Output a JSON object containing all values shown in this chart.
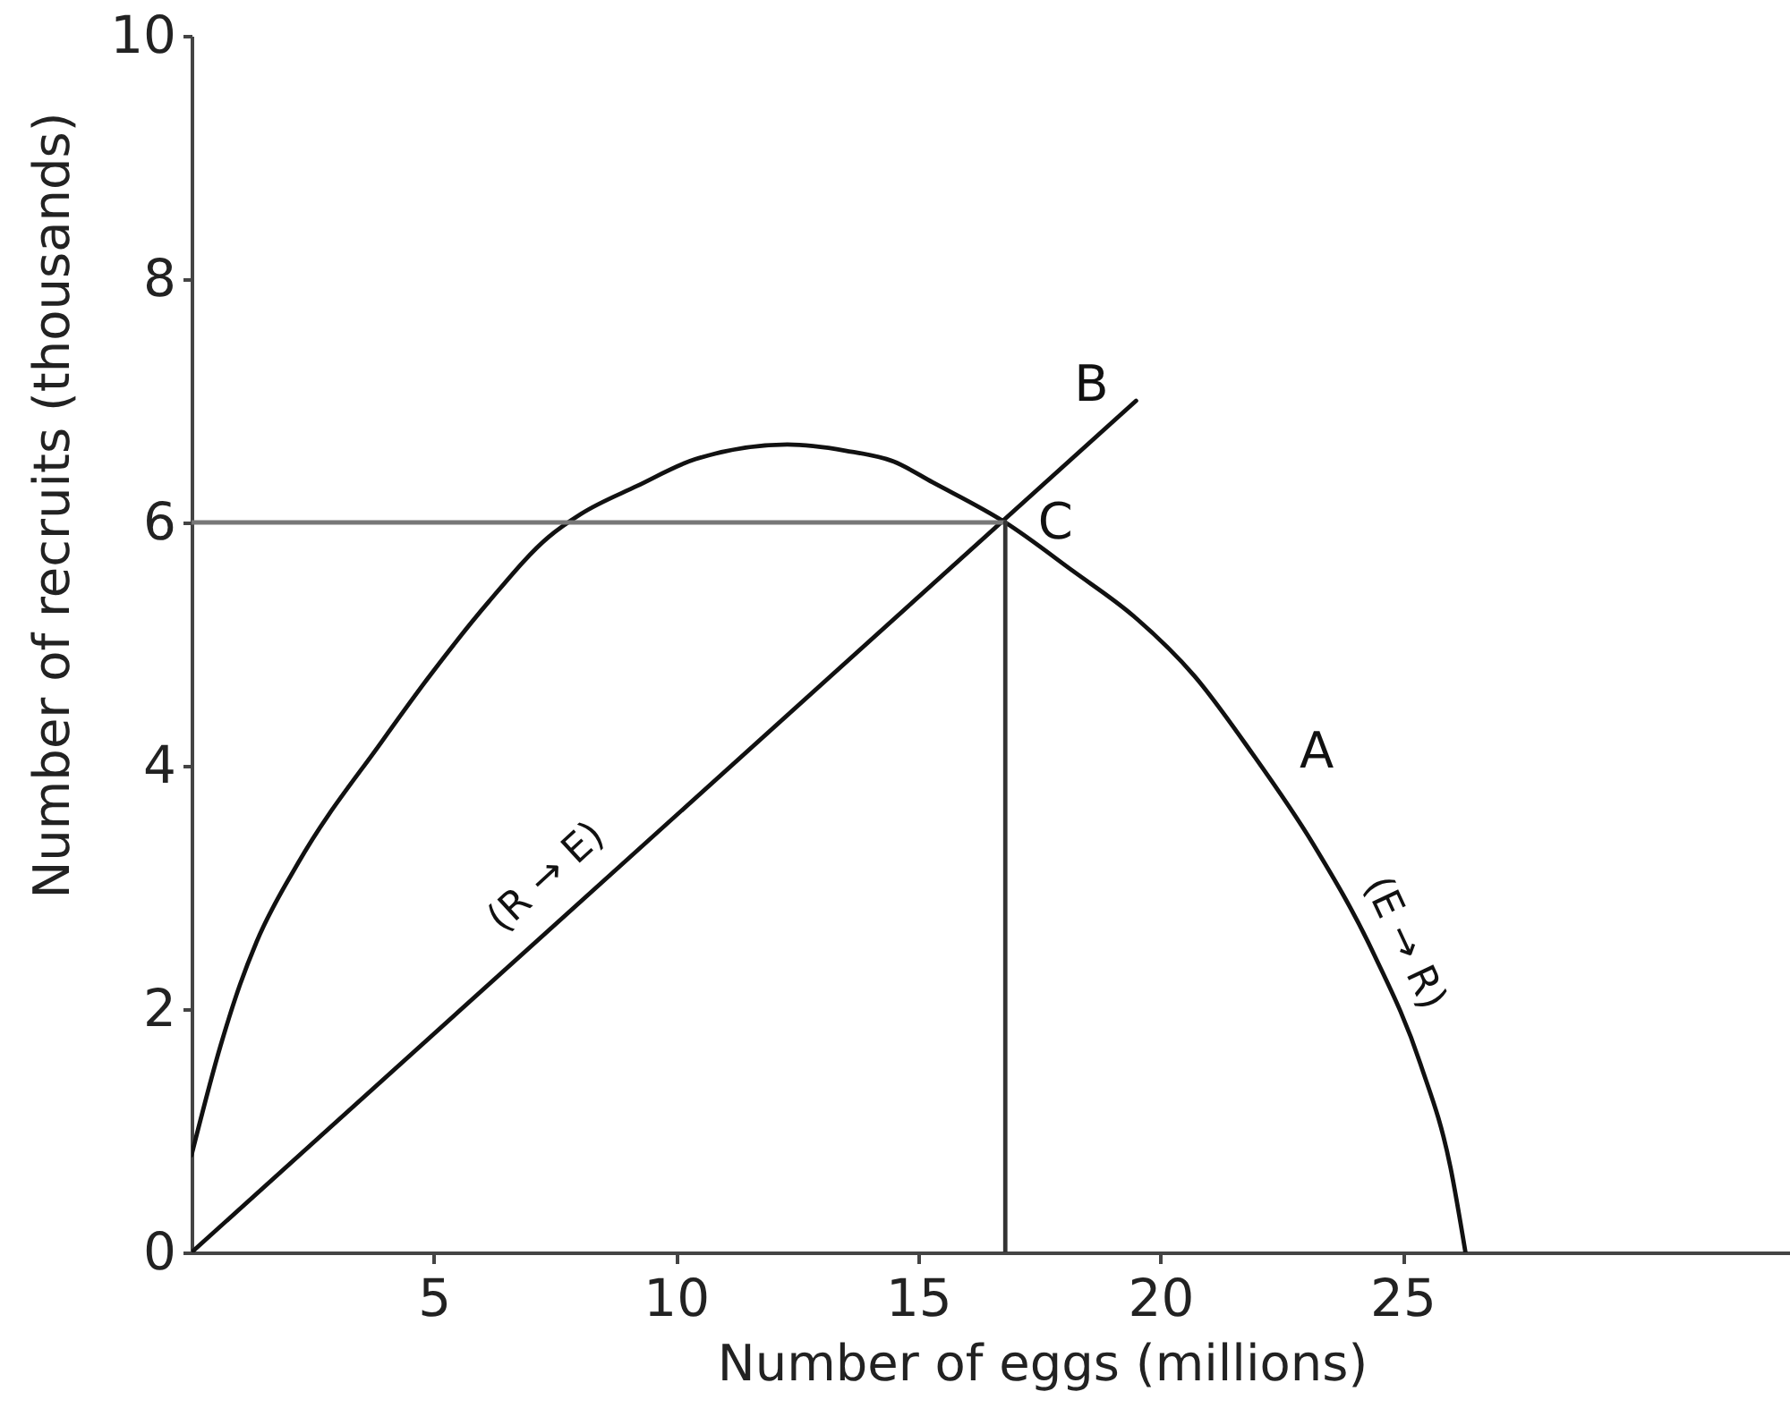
{
  "chart_data": {
    "type": "line",
    "xlabel": "Number of eggs (millions)",
    "ylabel": "Number of recruits (thousands)",
    "series": [
      {
        "name": "A",
        "color": "#111111",
        "x": [
          0,
          0.6,
          1.0,
          1.34,
          2.2,
          3.93,
          4.9,
          6.14,
          7.37,
          8.04,
          9.2,
          10.4,
          12.3,
          13.5,
          14.5,
          15.3,
          16.8,
          18.2,
          19.45,
          20.7,
          21.9,
          23.15,
          24.4,
          25.37,
          25.99,
          26.3
        ],
        "values": [
          0.8,
          1.7,
          2.2,
          2.55,
          3.2,
          4.2,
          4.73,
          5.35,
          5.88,
          6.07,
          6.3,
          6.52,
          6.64,
          6.59,
          6.5,
          6.33,
          6.0,
          5.6,
          5.23,
          4.74,
          4.1,
          3.36,
          2.46,
          1.55,
          0.7,
          0
        ]
      },
      {
        "name": "B",
        "color": "#111111",
        "x": [
          0,
          19.5
        ],
        "values": [
          0,
          7.0
        ]
      },
      {
        "color": "#777777",
        "x": [
          0,
          16.8
        ],
        "values": [
          6,
          6
        ]
      },
      {
        "color": "#333333",
        "x": [
          16.8,
          16.8
        ],
        "values": [
          0,
          6
        ]
      }
    ],
    "annotations": [
      {
        "text": "C",
        "x": 16.8,
        "y": 6
      },
      "(R → E)",
      "(E → R)"
    ],
    "xlim": [
      0,
      33
    ],
    "ylim": [
      0,
      10
    ],
    "xticks": [
      5,
      10,
      15,
      20,
      25
    ],
    "yticks": [
      0,
      2,
      4,
      6,
      8,
      10
    ],
    "line_style": "solid"
  }
}
